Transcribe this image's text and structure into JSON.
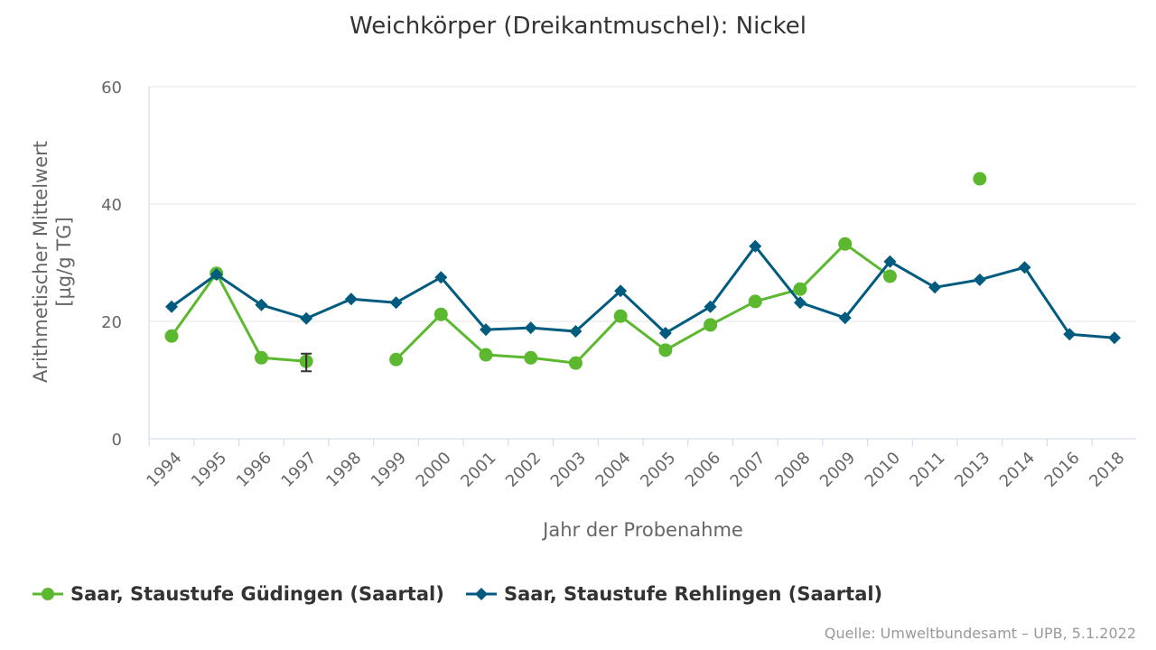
{
  "chart_data": {
    "type": "line",
    "title": "Weichkörper (Dreikantmuschel): Nickel",
    "xlabel": "Jahr der Probenahme",
    "ylabel_lines": [
      "Arithmetischer Mittelwert",
      "[µg/g TG]"
    ],
    "ylim": [
      0,
      60
    ],
    "yticks": [
      0,
      20,
      40,
      60
    ],
    "grid": true,
    "legend_position": "bottom-left",
    "categories": [
      "1994",
      "1995",
      "1996",
      "1997",
      "1998",
      "1999",
      "2000",
      "2001",
      "2002",
      "2003",
      "2004",
      "2005",
      "2006",
      "2007",
      "2008",
      "2009",
      "2010",
      "2011",
      "2013",
      "2014",
      "2016",
      "2018"
    ],
    "series": [
      {
        "name": "Saar, Staustufe Güdingen (Saartal)",
        "color": "#5cb82f",
        "marker": "circle",
        "values": [
          17.5,
          28.2,
          13.8,
          13.2,
          null,
          13.5,
          21.2,
          14.3,
          13.8,
          12.9,
          20.9,
          15.1,
          19.4,
          23.4,
          25.5,
          33.2,
          27.7,
          null,
          44.3,
          null,
          null,
          null
        ],
        "error_bars": [
          {
            "category": "1997",
            "low": 11.5,
            "high": 14.5
          }
        ]
      },
      {
        "name": "Saar, Staustufe Rehlingen (Saartal)",
        "color": "#005b7f",
        "marker": "diamond",
        "values": [
          22.5,
          28.0,
          22.8,
          20.5,
          23.8,
          23.2,
          27.5,
          18.6,
          18.9,
          18.3,
          25.2,
          18.0,
          22.5,
          32.8,
          23.2,
          20.6,
          30.2,
          25.8,
          27.1,
          29.2,
          17.8,
          17.2
        ]
      }
    ]
  },
  "source": "Quelle: Umweltbundesamt – UPB, 5.1.2022"
}
